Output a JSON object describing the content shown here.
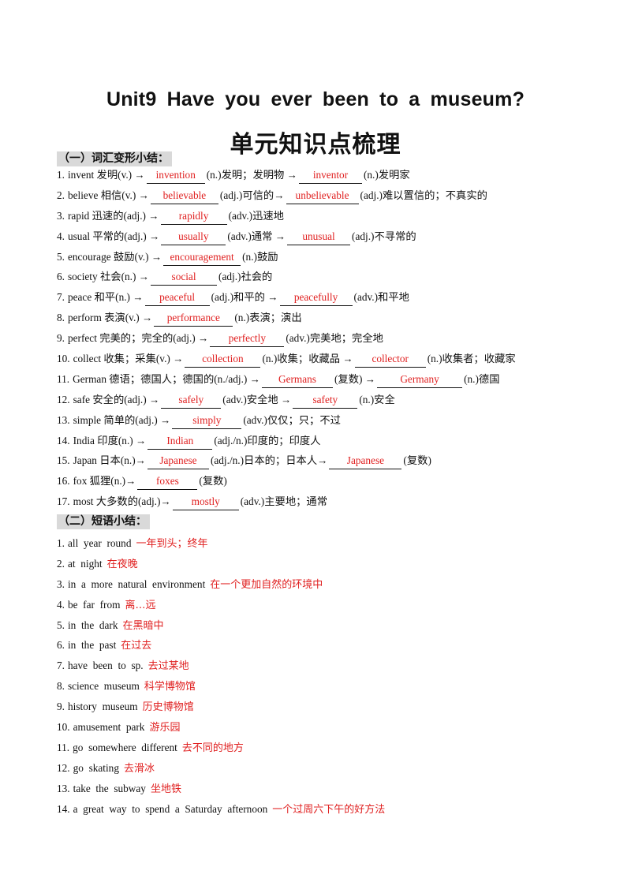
{
  "title_en": "Unit9 Have you ever been to a museum?",
  "title_zh": "单元知识点梳理",
  "section1": {
    "heading": "（一）词汇变形小结：",
    "items": [
      {
        "num": "1.",
        "parts": [
          "invent  发明(v.)  →",
          "(n.)发明；发明物  →",
          "(n.)发明家"
        ],
        "answers": [
          "invention",
          "inventor"
        ]
      },
      {
        "num": "2.",
        "parts": [
          "believe  相信(v.)  →",
          "(adj.)可信的→",
          "(adj.)难以置信的；不真实的"
        ],
        "answers": [
          "believable",
          "unbelievable"
        ]
      },
      {
        "num": "3.",
        "parts": [
          "rapid  迅速的(adj.)  →",
          "(adv.)迅速地"
        ],
        "answers": [
          "rapidly"
        ]
      },
      {
        "num": "4.",
        "parts": [
          "usual  平常的(adj.)  →",
          "(adv.)通常  →",
          "(adj.)不寻常的"
        ],
        "answers": [
          "usually",
          "unusual"
        ]
      },
      {
        "num": "5.",
        "parts": [
          "encourage  鼓励(v.)  →",
          "(n.)鼓励"
        ],
        "answers": [
          "encouragement"
        ]
      },
      {
        "num": "6.",
        "parts": [
          "society  社会(n.)  →",
          "(adj.)社会的"
        ],
        "answers": [
          "social"
        ]
      },
      {
        "num": "7.",
        "parts": [
          "peace  和平(n.)  →",
          "(adj.)和平的  →",
          "(adv.)和平地"
        ],
        "answers": [
          "peaceful",
          "peacefully"
        ]
      },
      {
        "num": "8.",
        "parts": [
          "perform  表演(v.)  →",
          "(n.)表演；演出"
        ],
        "answers": [
          "performance"
        ]
      },
      {
        "num": "9.",
        "parts": [
          "perfect  完美的；完全的(adj.)  →",
          "(adv.)完美地；完全地"
        ],
        "answers": [
          "perfectly"
        ]
      },
      {
        "num": "10.",
        "parts": [
          "collect  收集；采集(v.)  →",
          "(n.)收集；收藏品  →",
          "(n.)收集者；收藏家"
        ],
        "answers": [
          "collection",
          "collector"
        ]
      },
      {
        "num": "11.",
        "parts": [
          "German 德语；德国人；德国的(n./adj.)  →",
          "(复数)  →",
          "(n.)德国"
        ],
        "answers": [
          "Germans",
          "Germany"
        ]
      },
      {
        "num": "12.",
        "parts": [
          "safe  安全的(adj.)  →",
          "(adv.)安全地  →",
          "(n.)安全"
        ],
        "answers": [
          "safely",
          "safety"
        ]
      },
      {
        "num": "13.",
        "parts": [
          "simple  简单的(adj.)  →",
          "(adv.)仅仅；只；不过"
        ],
        "answers": [
          "simply"
        ]
      },
      {
        "num": "14.",
        "parts": [
          "India  印度(n.)  →",
          "(adj./n.)印度的；印度人"
        ],
        "answers": [
          "Indian"
        ]
      },
      {
        "num": "15.",
        "parts": [
          "Japan  日本(n.)→",
          "(adj./n.)日本的；日本人→",
          "(复数)"
        ],
        "answers": [
          "Japanese",
          "Japanese"
        ]
      },
      {
        "num": "16.",
        "parts": [
          "fox  狐狸(n.)→",
          "(复数)"
        ],
        "answers": [
          "foxes"
        ]
      },
      {
        "num": "17.",
        "parts": [
          "most  大多数的(adj.)→",
          "(adv.)主要地；通常"
        ],
        "answers": [
          "mostly"
        ]
      }
    ]
  },
  "section2": {
    "heading": "（二）短语小结：",
    "items": [
      {
        "num": "1.",
        "en": "all  year  round",
        "zh": "一年到头；终年"
      },
      {
        "num": "2.",
        "en": "at  night",
        "zh": "在夜晚"
      },
      {
        "num": "3.",
        "en": "in  a  more  natural  environment",
        "zh": "在一个更加自然的环境中"
      },
      {
        "num": "4.",
        "en": "be  far  from",
        "zh": "离…远"
      },
      {
        "num": "5.",
        "en": "in  the  dark",
        "zh": "在黑暗中"
      },
      {
        "num": "6.",
        "en": "in  the  past",
        "zh": "在过去"
      },
      {
        "num": "7.",
        "en": "have  been  to  sp.",
        "zh": "去过某地"
      },
      {
        "num": "8.",
        "en": "science  museum",
        "zh": "科学博物馆"
      },
      {
        "num": "9.",
        "en": "history  museum",
        "zh": "历史博物馆"
      },
      {
        "num": "10.",
        "en": "amusement  park",
        "zh": "游乐园"
      },
      {
        "num": "11.",
        "en": "go  somewhere  different",
        "zh": "去不同的地方"
      },
      {
        "num": "12.",
        "en": "go  skating",
        "zh": "去滑冰"
      },
      {
        "num": "13.",
        "en": "take  the  subway",
        "zh": "坐地铁"
      },
      {
        "num": "14.",
        "en": "a  great  way  to  spend  a  Saturday  afternoon",
        "zh": "一个过周六下午的好方法"
      }
    ]
  },
  "colors": {
    "answer": "#e02020",
    "heading_bg": "#d9d9d9"
  }
}
